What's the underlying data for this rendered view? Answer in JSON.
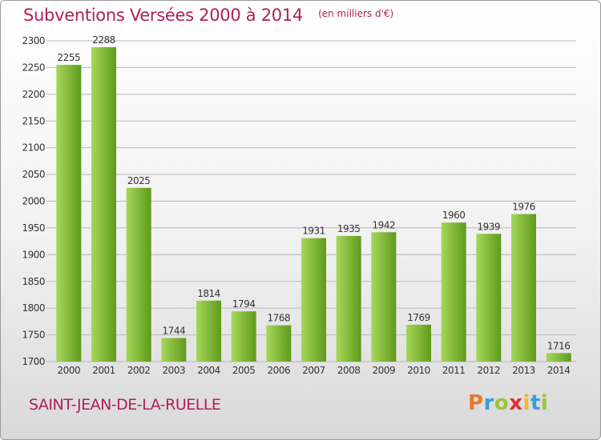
{
  "header": {
    "title": "Subventions Versées 2000 à 2014",
    "unit": "(en milliers d'€)"
  },
  "footer": {
    "commune": "SAINT-JEAN-DE-LA-RUELLE",
    "brand_letters": [
      "P",
      "r",
      "o",
      "x",
      "i",
      "t",
      "i"
    ],
    "brand_colors": [
      "#e8792a",
      "#3c9ad6",
      "#9bc43a",
      "#e2322f",
      "#f0b928",
      "#3c9ad6",
      "#9bc43a"
    ]
  },
  "colors": {
    "title": "#b01e5a",
    "bar_light": "#a6d75a",
    "bar_dark": "#5f9a1c",
    "grid": "#b9b9b9",
    "axis_text": "#333333"
  },
  "chart_data": {
    "type": "bar",
    "title": "Subventions Versées 2000 à 2014",
    "unit": "(en milliers d'€)",
    "categories": [
      "2000",
      "2001",
      "2002",
      "2003",
      "2004",
      "2005",
      "2006",
      "2007",
      "2008",
      "2009",
      "2010",
      "2011",
      "2012",
      "2013",
      "2014"
    ],
    "values": [
      2255,
      2288,
      2025,
      1744,
      1814,
      1794,
      1768,
      1931,
      1935,
      1942,
      1769,
      1960,
      1939,
      1976,
      1716
    ],
    "ylim": [
      1700,
      2300
    ],
    "yticks": [
      1700,
      1750,
      1800,
      1850,
      1900,
      1950,
      2000,
      2050,
      2100,
      2150,
      2200,
      2250,
      2300
    ],
    "grid": true,
    "data_labels": true
  }
}
